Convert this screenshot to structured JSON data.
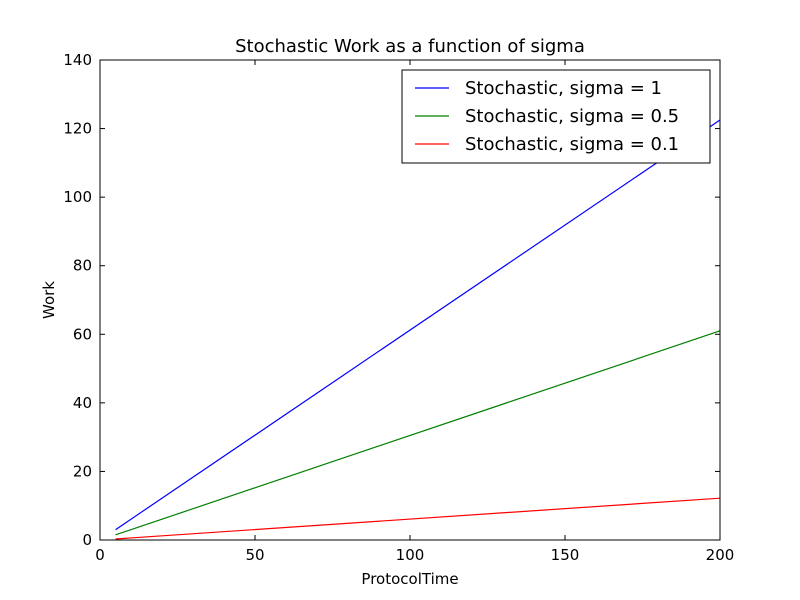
{
  "chart_data": {
    "type": "line",
    "title": "Stochastic Work as a function of sigma",
    "xlabel": "ProtocolTime",
    "ylabel": "Work",
    "xlim": [
      0,
      200
    ],
    "ylim": [
      0,
      140
    ],
    "xticks": [
      0,
      50,
      100,
      150,
      200
    ],
    "yticks": [
      0,
      20,
      40,
      60,
      80,
      100,
      120,
      140
    ],
    "grid": false,
    "legend_position": "top-right",
    "x": [
      5,
      200
    ],
    "series": [
      {
        "name": "Stochastic, sigma = 1",
        "color": "#0000ff",
        "values": [
          3,
          122.5
        ]
      },
      {
        "name": "Stochastic, sigma = 0.5",
        "color": "#008000",
        "values": [
          1.5,
          61
        ]
      },
      {
        "name": "Stochastic, sigma = 0.1",
        "color": "#ff0000",
        "values": [
          0.3,
          12.2
        ]
      }
    ]
  }
}
